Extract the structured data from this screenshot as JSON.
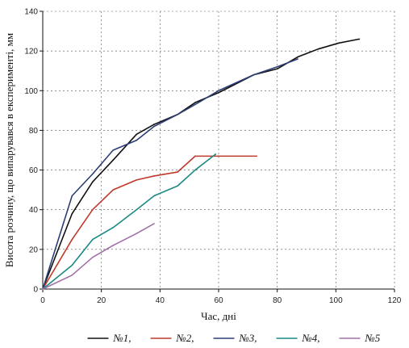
{
  "chart_data": {
    "type": "line",
    "xlabel": "Час, дні",
    "ylabel": "Висота розчину, що випарувався в експерименті, мм",
    "xlim": [
      0,
      120
    ],
    "ylim": [
      0,
      140
    ],
    "x_ticks": [
      "0",
      "20",
      "40",
      "60",
      "80",
      "100",
      "120"
    ],
    "y_ticks": [
      "0",
      "20",
      "40",
      "60",
      "80",
      "100",
      "120",
      "140"
    ],
    "grid": true,
    "legend_position": "bottom",
    "series": [
      {
        "name": "№1,",
        "color": "#111111",
        "points": [
          [
            0,
            0
          ],
          [
            10,
            38
          ],
          [
            17,
            54
          ],
          [
            24,
            65
          ],
          [
            32,
            78
          ],
          [
            38,
            83
          ],
          [
            46,
            88
          ],
          [
            52,
            94
          ],
          [
            60,
            99
          ],
          [
            72,
            108
          ],
          [
            80,
            111
          ],
          [
            87,
            117
          ],
          [
            94,
            121
          ],
          [
            101,
            124
          ],
          [
            108,
            126
          ]
        ]
      },
      {
        "name": "№2,",
        "color": "#c0392b",
        "points": [
          [
            0,
            0
          ],
          [
            10,
            25
          ],
          [
            17,
            40
          ],
          [
            24,
            50
          ],
          [
            32,
            55
          ],
          [
            38,
            57
          ],
          [
            46,
            59
          ],
          [
            52,
            67
          ],
          [
            60,
            67
          ],
          [
            73,
            67
          ]
        ]
      },
      {
        "name": "№3,",
        "color": "#2c3e75",
        "points": [
          [
            0,
            0
          ],
          [
            10,
            47
          ],
          [
            17,
            58
          ],
          [
            24,
            70
          ],
          [
            32,
            75
          ],
          [
            38,
            82
          ],
          [
            46,
            88
          ],
          [
            52,
            93
          ],
          [
            60,
            100
          ],
          [
            72,
            108
          ],
          [
            80,
            112
          ],
          [
            87,
            116
          ]
        ]
      },
      {
        "name": "№4,",
        "color": "#1a8a85",
        "points": [
          [
            0,
            0
          ],
          [
            10,
            12
          ],
          [
            17,
            25
          ],
          [
            24,
            31
          ],
          [
            32,
            40
          ],
          [
            38,
            47
          ],
          [
            46,
            52
          ],
          [
            52,
            60
          ],
          [
            59,
            68
          ]
        ]
      },
      {
        "name": "№5",
        "color": "#a070a8",
        "points": [
          [
            0,
            0
          ],
          [
            10,
            7
          ],
          [
            17,
            16
          ],
          [
            24,
            22
          ],
          [
            32,
            28
          ],
          [
            38,
            33
          ]
        ]
      }
    ]
  }
}
